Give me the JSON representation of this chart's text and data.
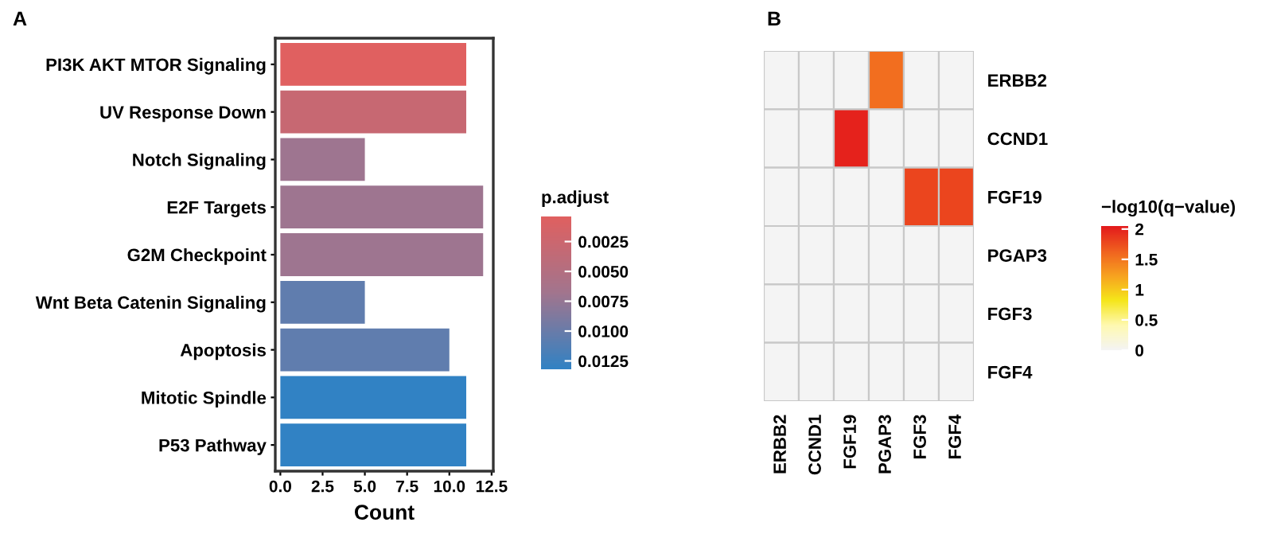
{
  "chart_data": [
    {
      "type": "bar",
      "orientation": "horizontal",
      "title": "A",
      "xlabel": "Count",
      "clabel": "p.adjust",
      "categories": [
        "PI3K AKT MTOR Signaling",
        "UV Response Down",
        "Notch Signaling",
        "E2F Targets",
        "G2M Checkpoint",
        "Wnt Beta Catenin Signaling",
        "Apoptosis",
        "Mitotic Spindle",
        "P53 Pathway"
      ],
      "values": [
        11,
        11,
        5,
        12,
        12,
        5,
        10,
        11,
        11
      ],
      "cvalues": [
        0.0004,
        0.003,
        0.007,
        0.007,
        0.007,
        0.0105,
        0.0105,
        0.0132,
        0.0132
      ],
      "clim": [
        0.0004,
        0.0132
      ],
      "cticks": [
        {
          "value": 0.0025,
          "label": "0.0025"
        },
        {
          "value": 0.005,
          "label": "0.0050"
        },
        {
          "value": 0.0075,
          "label": "0.0075"
        },
        {
          "value": 0.01,
          "label": "0.0100"
        },
        {
          "value": 0.0125,
          "label": "0.0125"
        }
      ],
      "xlim": [
        -0.3,
        12.6
      ],
      "xticks": [
        {
          "value": 0,
          "label": "0.0"
        },
        2.5,
        {
          "value": 5,
          "label": "5.0"
        },
        7.5,
        {
          "value": 10,
          "label": "10.0"
        },
        12.5
      ],
      "grid": false
    },
    {
      "type": "heatmap",
      "title": "B",
      "clabel": "−log10(q−value)",
      "categories": [
        "ERBB2",
        "CCND1",
        "FGF19",
        "PGAP3",
        "FGF3",
        "FGF4"
      ],
      "y_categories": [
        "ERBB2",
        "CCND1",
        "FGF19",
        "PGAP3",
        "FGF3",
        "FGF4"
      ],
      "cells": [
        [
          0,
          0,
          0,
          1.55,
          0,
          0
        ],
        [
          0,
          0,
          2.0,
          0,
          0,
          0
        ],
        [
          0,
          0,
          0,
          0,
          1.8,
          1.8
        ],
        [
          0,
          0,
          0,
          0,
          0,
          0
        ],
        [
          0,
          0,
          0,
          0,
          0,
          0
        ],
        [
          0,
          0,
          0,
          0,
          0,
          0
        ]
      ],
      "clim": [
        0,
        2.05
      ],
      "cticks": [
        0,
        0.5,
        1,
        1.5,
        2
      ]
    }
  ]
}
